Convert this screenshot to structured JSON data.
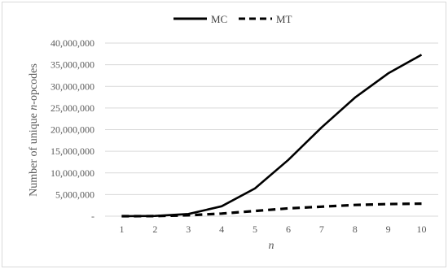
{
  "chart_data": {
    "type": "line",
    "title": "",
    "xlabel": "n",
    "ylabel_prefix": "Number of unique ",
    "ylabel_italic": "n",
    "ylabel_suffix": "-opcodes",
    "x": [
      1,
      2,
      3,
      4,
      5,
      6,
      7,
      8,
      9,
      10
    ],
    "x_tick_labels": [
      "1",
      "2",
      "3",
      "4",
      "5",
      "6",
      "7",
      "8",
      "9",
      "10"
    ],
    "ylim": [
      0,
      40000000
    ],
    "y_ticks": [
      0,
      5000000,
      10000000,
      15000000,
      20000000,
      25000000,
      30000000,
      35000000,
      40000000
    ],
    "y_tick_labels": [
      "-",
      "5,000,000",
      "10,000,000",
      "15,000,000",
      "20,000,000",
      "25,000,000",
      "30,000,000",
      "35,000,000",
      "40,000,000"
    ],
    "grid": "horizontal",
    "legend_position": "top",
    "series": [
      {
        "name": "MC",
        "style": "solid",
        "color": "#000000",
        "values": [
          2000,
          60000,
          500000,
          2300000,
          6400000,
          13000000,
          20500000,
          27400000,
          33000000,
          37300000
        ]
      },
      {
        "name": "MT",
        "style": "dashed",
        "color": "#000000",
        "values": [
          1000,
          20000,
          200000,
          600000,
          1200000,
          1800000,
          2200000,
          2600000,
          2800000,
          2900000
        ]
      }
    ]
  }
}
